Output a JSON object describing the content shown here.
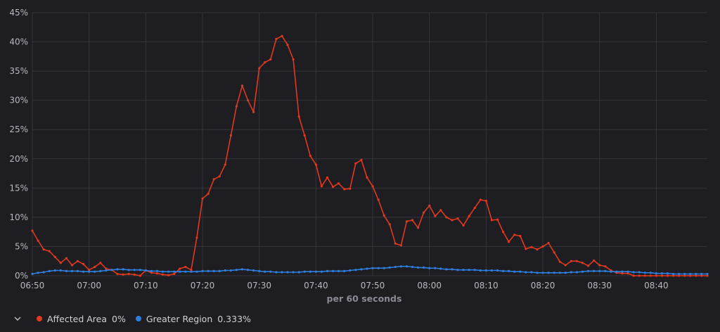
{
  "chart_data": {
    "type": "line",
    "xlabel": "per 60 seconds",
    "ylabel": "",
    "x_ticks": [
      "06:50",
      "07:00",
      "07:10",
      "07:20",
      "07:30",
      "07:40",
      "07:50",
      "08:00",
      "08:10",
      "08:20",
      "08:30",
      "08:40"
    ],
    "x_range_minutes": [
      0,
      119
    ],
    "x_origin_time": "06:50",
    "y_ticks": [
      "0%",
      "5%",
      "10%",
      "15%",
      "20%",
      "25%",
      "30%",
      "35%",
      "40%",
      "45%"
    ],
    "ylim": [
      0,
      45
    ],
    "grid": true,
    "legend_position": "bottom-left",
    "series": [
      {
        "name": "Affected Area",
        "legend_value": "0%",
        "color": "#e0391e",
        "values": [
          7.7,
          6.0,
          4.5,
          4.2,
          3.2,
          2.2,
          3.0,
          1.8,
          2.5,
          2.0,
          1.0,
          1.5,
          2.2,
          1.2,
          1.0,
          0.3,
          0.2,
          0.3,
          0.2,
          0.0,
          0.9,
          0.5,
          0.4,
          0.2,
          0.1,
          0.3,
          1.2,
          1.5,
          1.0,
          6.5,
          13.2,
          14.0,
          16.5,
          17.0,
          19.0,
          24.0,
          29.0,
          32.5,
          30.0,
          28.0,
          35.5,
          36.5,
          37.0,
          40.5,
          41.0,
          39.5,
          37.0,
          27.2,
          24.0,
          20.5,
          19.0,
          15.3,
          16.8,
          15.2,
          15.8,
          14.8,
          14.9,
          19.2,
          19.8,
          16.8,
          15.3,
          13.0,
          10.3,
          8.8,
          5.5,
          5.2,
          9.3,
          9.5,
          8.2,
          10.8,
          12.0,
          10.2,
          11.2,
          10.0,
          9.5,
          9.8,
          8.6,
          10.2,
          11.6,
          13.0,
          12.8,
          9.5,
          9.6,
          7.5,
          5.8,
          7.0,
          6.8,
          4.6,
          4.9,
          4.5,
          5.0,
          5.6,
          4.0,
          2.4,
          1.8,
          2.5,
          2.5,
          2.2,
          1.7,
          2.6,
          1.8,
          1.6,
          0.9,
          0.5,
          0.4,
          0.4,
          0.0,
          0.0,
          0.0,
          0.0,
          0.0,
          0.0,
          0.0,
          0.0,
          0.0,
          0.0,
          0.0,
          0.0,
          0.0,
          0.0
        ]
      },
      {
        "name": "Greater Region",
        "legend_value": "0.333%",
        "color": "#2f7fe0",
        "values": [
          0.3,
          0.5,
          0.6,
          0.8,
          0.9,
          0.9,
          0.8,
          0.8,
          0.8,
          0.7,
          0.7,
          0.7,
          0.8,
          0.9,
          1.0,
          1.1,
          1.1,
          1.0,
          1.0,
          1.0,
          0.9,
          0.8,
          0.8,
          0.7,
          0.7,
          0.7,
          0.7,
          0.7,
          0.7,
          0.7,
          0.8,
          0.8,
          0.8,
          0.8,
          0.9,
          0.9,
          1.0,
          1.1,
          1.0,
          0.9,
          0.8,
          0.7,
          0.7,
          0.6,
          0.6,
          0.6,
          0.6,
          0.6,
          0.7,
          0.7,
          0.7,
          0.7,
          0.8,
          0.8,
          0.8,
          0.8,
          0.9,
          1.0,
          1.1,
          1.2,
          1.3,
          1.3,
          1.3,
          1.4,
          1.5,
          1.6,
          1.6,
          1.5,
          1.4,
          1.4,
          1.3,
          1.3,
          1.2,
          1.1,
          1.1,
          1.0,
          1.0,
          1.0,
          1.0,
          0.9,
          0.9,
          0.9,
          0.9,
          0.8,
          0.8,
          0.7,
          0.7,
          0.6,
          0.6,
          0.5,
          0.5,
          0.5,
          0.5,
          0.5,
          0.5,
          0.6,
          0.6,
          0.7,
          0.8,
          0.8,
          0.8,
          0.8,
          0.7,
          0.7,
          0.7,
          0.7,
          0.6,
          0.6,
          0.5,
          0.5,
          0.4,
          0.4,
          0.4,
          0.3,
          0.3,
          0.3,
          0.3,
          0.3,
          0.3,
          0.3
        ]
      }
    ]
  }
}
